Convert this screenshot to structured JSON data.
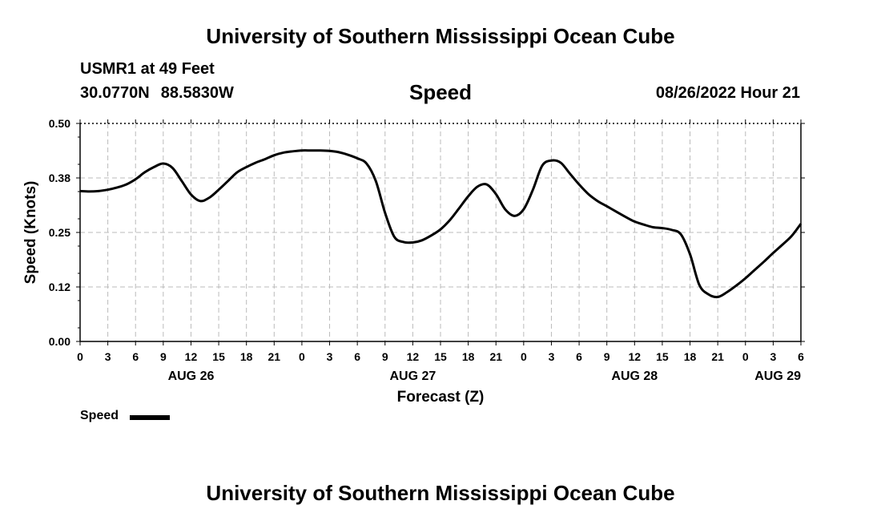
{
  "header": {
    "title": "University of Southern Mississippi Ocean Cube",
    "station": "USMR1 at 49 Feet",
    "lat": "30.0770N",
    "lon": "88.5830W",
    "variable": "Speed",
    "datetime": "08/26/2022 Hour 21"
  },
  "footer": {
    "title": "University of Southern Mississippi Ocean Cube"
  },
  "legend": {
    "label": "Speed"
  },
  "chart_data": {
    "type": "line",
    "xlabel": "Forecast (Z)",
    "ylabel": "Speed (Knots)",
    "ylim": [
      0,
      0.5
    ],
    "yticks": [
      "0.00",
      "0.12",
      "0.25",
      "0.38",
      "0.50"
    ],
    "xticks": [
      "0",
      "3",
      "6",
      "9",
      "12",
      "15",
      "18",
      "21",
      "0",
      "3",
      "6",
      "9",
      "12",
      "15",
      "18",
      "21",
      "0",
      "3",
      "6",
      "9",
      "12",
      "15",
      "18",
      "21",
      "0",
      "3",
      "6"
    ],
    "day_labels": [
      {
        "label": "AUG 26",
        "hour": 12
      },
      {
        "label": "AUG 27",
        "hour": 36
      },
      {
        "label": "AUG 28",
        "hour": 60
      },
      {
        "label": "AUG 29",
        "hour": 78
      }
    ],
    "xlim_hours": [
      0,
      78
    ],
    "grid": true,
    "series": [
      {
        "name": "Speed",
        "color": "#000000",
        "points": [
          [
            0,
            0.345
          ],
          [
            1,
            0.344
          ],
          [
            2,
            0.345
          ],
          [
            3,
            0.348
          ],
          [
            4,
            0.353
          ],
          [
            5,
            0.36
          ],
          [
            6,
            0.372
          ],
          [
            7,
            0.388
          ],
          [
            8,
            0.4
          ],
          [
            9,
            0.408
          ],
          [
            10,
            0.398
          ],
          [
            11,
            0.368
          ],
          [
            12,
            0.337
          ],
          [
            13,
            0.322
          ],
          [
            14,
            0.33
          ],
          [
            15,
            0.348
          ],
          [
            16,
            0.368
          ],
          [
            17,
            0.388
          ],
          [
            18,
            0.4
          ],
          [
            19,
            0.41
          ],
          [
            20,
            0.418
          ],
          [
            21,
            0.427
          ],
          [
            22,
            0.433
          ],
          [
            23,
            0.436
          ],
          [
            24,
            0.438
          ],
          [
            25,
            0.438
          ],
          [
            26,
            0.438
          ],
          [
            27,
            0.437
          ],
          [
            28,
            0.434
          ],
          [
            29,
            0.428
          ],
          [
            30,
            0.42
          ],
          [
            31,
            0.408
          ],
          [
            32,
            0.368
          ],
          [
            33,
            0.295
          ],
          [
            34,
            0.24
          ],
          [
            35,
            0.228
          ],
          [
            36,
            0.227
          ],
          [
            37,
            0.232
          ],
          [
            38,
            0.243
          ],
          [
            39,
            0.257
          ],
          [
            40,
            0.278
          ],
          [
            41,
            0.305
          ],
          [
            42,
            0.333
          ],
          [
            43,
            0.355
          ],
          [
            44,
            0.36
          ],
          [
            45,
            0.338
          ],
          [
            46,
            0.303
          ],
          [
            47,
            0.288
          ],
          [
            48,
            0.303
          ],
          [
            49,
            0.348
          ],
          [
            50,
            0.403
          ],
          [
            51,
            0.415
          ],
          [
            52,
            0.41
          ],
          [
            53,
            0.385
          ],
          [
            54,
            0.36
          ],
          [
            55,
            0.338
          ],
          [
            56,
            0.322
          ],
          [
            57,
            0.31
          ],
          [
            58,
            0.298
          ],
          [
            59,
            0.286
          ],
          [
            60,
            0.275
          ],
          [
            61,
            0.268
          ],
          [
            62,
            0.262
          ],
          [
            63,
            0.26
          ],
          [
            64,
            0.256
          ],
          [
            65,
            0.246
          ],
          [
            66,
            0.2
          ],
          [
            67,
            0.13
          ],
          [
            68,
            0.108
          ],
          [
            69,
            0.102
          ],
          [
            70,
            0.113
          ],
          [
            71,
            0.128
          ],
          [
            72,
            0.145
          ],
          [
            73,
            0.164
          ],
          [
            74,
            0.183
          ],
          [
            75,
            0.203
          ],
          [
            76,
            0.222
          ],
          [
            77,
            0.242
          ],
          [
            78,
            0.27
          ]
        ]
      }
    ]
  }
}
